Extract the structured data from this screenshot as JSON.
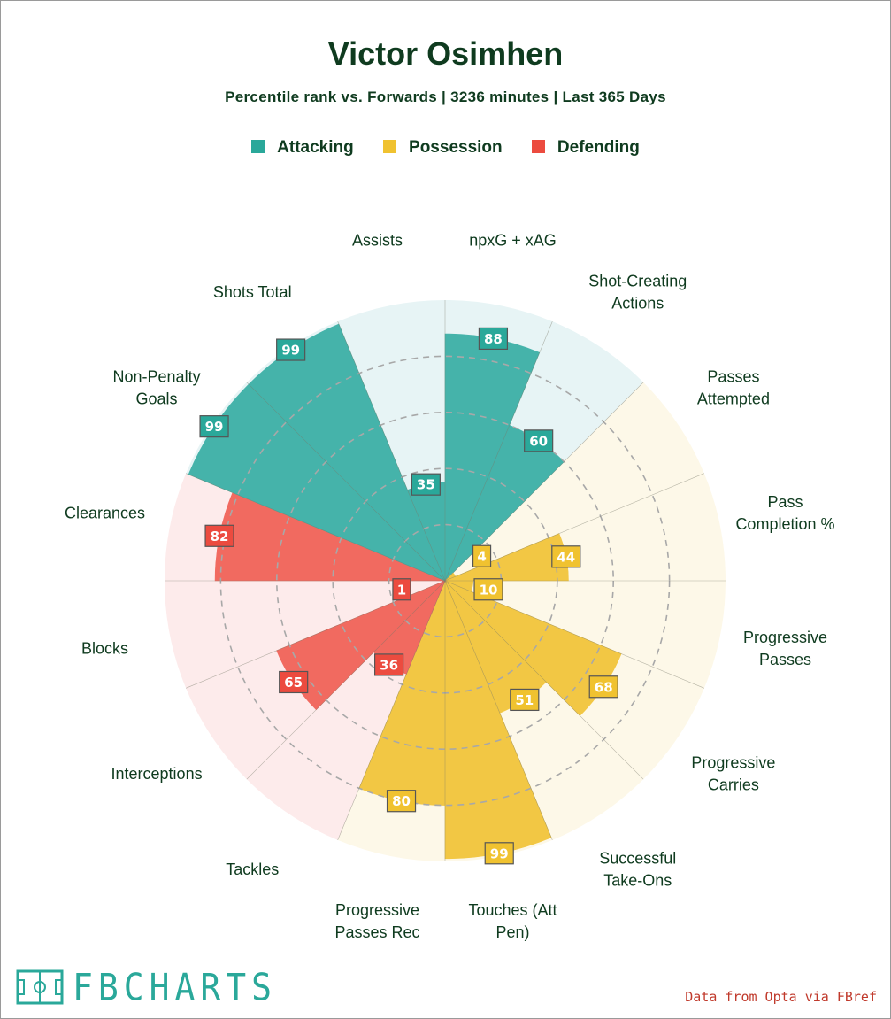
{
  "title": "Victor Osimhen",
  "subtitle": "Percentile rank vs. Forwards | 3236 minutes | Last 365 Days",
  "legend": [
    {
      "label": "Attacking",
      "color": "#2aa89a"
    },
    {
      "label": "Possession",
      "color": "#f0c230"
    },
    {
      "label": "Defending",
      "color": "#ec4b3f"
    }
  ],
  "chart_data": {
    "type": "polar-bar",
    "range": [
      0,
      100
    ],
    "grid": "dashed rings",
    "categories": [
      {
        "label": [
          "npxG + xAG"
        ],
        "value": 88,
        "group": "Attacking"
      },
      {
        "label": [
          "Shot-Creating",
          "Actions"
        ],
        "value": 60,
        "group": "Attacking"
      },
      {
        "label": [
          "Passes",
          "Attempted"
        ],
        "value": 4,
        "group": "Possession"
      },
      {
        "label": [
          "Pass",
          "Completion %"
        ],
        "value": 44,
        "group": "Possession"
      },
      {
        "label": [
          "Progressive",
          "Passes"
        ],
        "value": 10,
        "group": "Possession"
      },
      {
        "label": [
          "Progressive",
          "Carries"
        ],
        "value": 68,
        "group": "Possession"
      },
      {
        "label": [
          "Successful",
          "Take-Ons"
        ],
        "value": 51,
        "group": "Possession"
      },
      {
        "label": [
          "Touches (Att",
          "Pen)"
        ],
        "value": 99,
        "group": "Possession"
      },
      {
        "label": [
          "Progressive",
          "Passes Rec"
        ],
        "value": 80,
        "group": "Possession"
      },
      {
        "label": [
          "Tackles"
        ],
        "value": 36,
        "group": "Defending"
      },
      {
        "label": [
          "Interceptions"
        ],
        "value": 65,
        "group": "Defending"
      },
      {
        "label": [
          "Blocks"
        ],
        "value": 1,
        "group": "Defending"
      },
      {
        "label": [
          "Clearances"
        ],
        "value": 82,
        "group": "Defending"
      },
      {
        "label": [
          "Non-Penalty",
          "Goals"
        ],
        "value": 99,
        "group": "Attacking"
      },
      {
        "label": [
          "Shots Total"
        ],
        "value": 99,
        "group": "Attacking"
      },
      {
        "label": [
          "Assists"
        ],
        "value": 35,
        "group": "Attacking"
      }
    ],
    "group_colors": {
      "Attacking": {
        "bar": "#45b3aa",
        "bg": "#e7f4f5",
        "badge": "#2aa89a"
      },
      "Possession": {
        "bar": "#f2c744",
        "bg": "#fdf8e8",
        "badge": "#f0c230"
      },
      "Defending": {
        "bar": "#f16a60",
        "bg": "#fdebeb",
        "badge": "#ec4b3f"
      }
    }
  },
  "logo": {
    "text": "FBCHARTS"
  },
  "source": "Data from Opta via FBref"
}
